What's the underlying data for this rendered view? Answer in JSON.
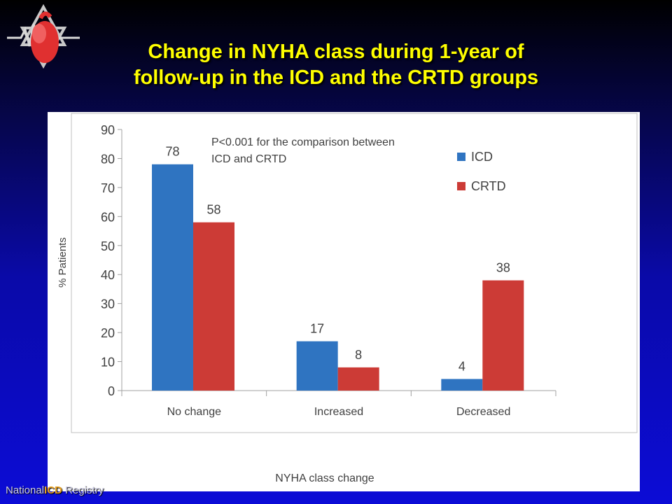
{
  "slide": {
    "title_line1": "Change in NYHA class during 1-year of",
    "title_line2": "follow-up in the ICD and the CRTD groups"
  },
  "footer": {
    "prefix": "National",
    "highlight": "ICD",
    "suffix": " Registry"
  },
  "colors": {
    "icd": "#2f74c1",
    "crtd": "#cc3b36",
    "title": "#ffff00"
  },
  "chart_data": {
    "type": "bar",
    "categories": [
      "No change",
      "Increased",
      "Decreased"
    ],
    "series": [
      {
        "name": "ICD",
        "values": [
          78,
          17,
          4
        ]
      },
      {
        "name": "CRTD",
        "values": [
          58,
          8,
          38
        ]
      }
    ],
    "data_labels": [
      [
        "78",
        "17",
        "4"
      ],
      [
        "58",
        "8",
        "38"
      ]
    ],
    "ylim": [
      0,
      90
    ],
    "yticks": [
      0,
      10,
      20,
      30,
      40,
      50,
      60,
      70,
      80,
      90
    ],
    "xlabel": "NYHA class change",
    "ylabel": "% Patients",
    "annotation_line1": "P<0.001 for the comparison between",
    "annotation_line2": "ICD and CRTD",
    "legend_position": "right",
    "grid": false
  }
}
